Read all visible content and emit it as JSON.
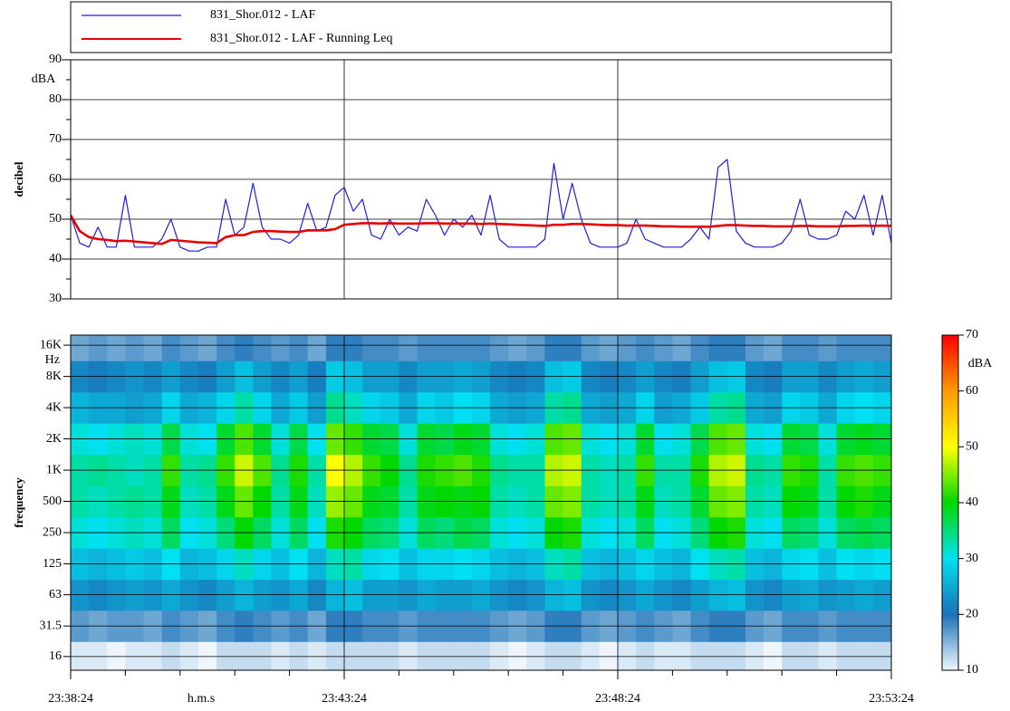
{
  "chart_data": [
    {
      "type": "line",
      "ylabel": "decibel",
      "yunit": "dBA",
      "xlim": [
        85104,
        86004
      ],
      "ylim": [
        30,
        90
      ],
      "yticks": [
        30,
        40,
        50,
        60,
        70,
        80,
        90
      ],
      "yminorticks": [
        35,
        45,
        55,
        65,
        75,
        85
      ],
      "grid": true,
      "legend": "top",
      "x": [
        85104,
        85114,
        85124,
        85134,
        85144,
        85154,
        85164,
        85174,
        85184,
        85194,
        85204,
        85214,
        85224,
        85234,
        85244,
        85254,
        85264,
        85274,
        85284,
        85294,
        85304,
        85314,
        85324,
        85334,
        85344,
        85354,
        85364,
        85374,
        85384,
        85394,
        85404,
        85414,
        85424,
        85434,
        85444,
        85454,
        85464,
        85474,
        85484,
        85494,
        85504,
        85514,
        85524,
        85534,
        85544,
        85554,
        85564,
        85574,
        85584,
        85594,
        85604,
        85614,
        85624,
        85634,
        85644,
        85654,
        85664,
        85674,
        85684,
        85694,
        85704,
        85714,
        85724,
        85734,
        85744,
        85754,
        85764,
        85774,
        85784,
        85794,
        85804,
        85814,
        85824,
        85834,
        85844,
        85854,
        85864,
        85874,
        85884,
        85894,
        85904,
        85914,
        85924,
        85934,
        85944,
        85954,
        85964,
        85974,
        85984,
        85994,
        86004
      ],
      "series": [
        {
          "name": "831_Shor.012 - LAF",
          "color": "#1f1fd6",
          "values": [
            51,
            44,
            43,
            48,
            43,
            43,
            56,
            43,
            43,
            43,
            45,
            50,
            43,
            42,
            42,
            43,
            43,
            55,
            46,
            48,
            59,
            48,
            45,
            45,
            44,
            46,
            54,
            47,
            48,
            56,
            58,
            52,
            55,
            46,
            45,
            50,
            46,
            48,
            47,
            55,
            51,
            46,
            50,
            48,
            51,
            46,
            56,
            45,
            43,
            43,
            43,
            43,
            45,
            64,
            50,
            59,
            50,
            44,
            43,
            43,
            43,
            44,
            50,
            45,
            44,
            43,
            43,
            43,
            45,
            48,
            45,
            63,
            65,
            47,
            44,
            43,
            43,
            43,
            44,
            47,
            55,
            46,
            45,
            45,
            46,
            52,
            50,
            56,
            46,
            56,
            44
          ]
        },
        {
          "name": "831_Shor.012 - LAF - Running Leq",
          "color": "#e60000",
          "values": [
            51,
            47,
            45.5,
            45,
            44.8,
            44.5,
            44.6,
            44.4,
            44.2,
            44,
            43.8,
            44.8,
            44.6,
            44.4,
            44.2,
            44.1,
            44,
            45.5,
            46,
            46,
            46.8,
            47,
            47,
            46.9,
            46.8,
            46.8,
            47.2,
            47.2,
            47.2,
            47.5,
            48.6,
            48.8,
            49,
            49,
            48.9,
            49,
            48.9,
            48.9,
            48.9,
            49,
            49,
            48.9,
            48.9,
            48.9,
            48.9,
            48.8,
            48.9,
            48.8,
            48.7,
            48.6,
            48.5,
            48.4,
            48.3,
            48.6,
            48.6,
            48.8,
            48.8,
            48.7,
            48.6,
            48.5,
            48.5,
            48.4,
            48.4,
            48.4,
            48.3,
            48.2,
            48.2,
            48.1,
            48.1,
            48.1,
            48.1,
            48.3,
            48.5,
            48.5,
            48.4,
            48.3,
            48.3,
            48.2,
            48.2,
            48.2,
            48.3,
            48.3,
            48.2,
            48.2,
            48.2,
            48.3,
            48.3,
            48.4,
            48.3,
            48.4,
            48.3
          ]
        }
      ]
    },
    {
      "type": "heatmap",
      "ylabel": "frequency",
      "yunit": "Hz",
      "xlabel": "h.m.s",
      "yscale": "log",
      "xlim": [
        85104,
        86004
      ],
      "xticks": [
        {
          "value": 85104,
          "label": "23:38:24"
        },
        {
          "value": 85404,
          "label": "23:43:24"
        },
        {
          "value": 85704,
          "label": "23:48:24"
        },
        {
          "value": 86004,
          "label": "23:53:24"
        }
      ],
      "xminorticks": [
        85164,
        85224,
        85284,
        85344,
        85464,
        85524,
        85584,
        85644,
        85764,
        85824,
        85884,
        85944
      ],
      "ylim": [
        11.8,
        20000
      ],
      "yticks": [
        {
          "value": 16000,
          "label": "16K"
        },
        {
          "value": 8000,
          "label": "8K"
        },
        {
          "value": 4000,
          "label": "4K"
        },
        {
          "value": 2000,
          "label": "2K"
        },
        {
          "value": 1000,
          "label": "1K"
        },
        500,
        250,
        125,
        63,
        31.5,
        16
      ],
      "grid": true,
      "zlim": [
        10,
        70
      ],
      "zticks": [
        10,
        20,
        30,
        40,
        50,
        60,
        70
      ],
      "zlabel": "dBA",
      "colorscale": [
        [
          10,
          "#eef6fc"
        ],
        [
          20,
          "#1a72b8"
        ],
        [
          30,
          "#00e0f0"
        ],
        [
          40,
          "#00d800"
        ],
        [
          50,
          "#ffff00"
        ],
        [
          60,
          "#ff9a00"
        ],
        [
          70,
          "#ff0000"
        ]
      ],
      "time_edges": [
        85104,
        85124,
        85144,
        85164,
        85184,
        85204,
        85224,
        85244,
        85264,
        85284,
        85304,
        85324,
        85344,
        85364,
        85384,
        85404,
        85424,
        85444,
        85464,
        85484,
        85504,
        85524,
        85544,
        85564,
        85584,
        85604,
        85624,
        85644,
        85664,
        85684,
        85704,
        85724,
        85744,
        85764,
        85784,
        85804,
        85824,
        85844,
        85864,
        85884,
        85904,
        85924,
        85944,
        85964,
        85984,
        86004
      ],
      "frequencies": [
        16,
        31.5,
        63,
        125,
        250,
        500,
        1000,
        2000,
        4000,
        8000,
        16000
      ],
      "values": [
        [
          11,
          11,
          10,
          11,
          11,
          12,
          11,
          10,
          12,
          12,
          12,
          11,
          12,
          11,
          12,
          12,
          12,
          12,
          11,
          12,
          12,
          12,
          12,
          11,
          10,
          11,
          12,
          12,
          11,
          10,
          11,
          12,
          11,
          11,
          12,
          12,
          12,
          11,
          10,
          12,
          12,
          11,
          12,
          12,
          12
        ],
        [
          17,
          16,
          17,
          17,
          16,
          18,
          17,
          16,
          18,
          19,
          18,
          17,
          18,
          16,
          19,
          19,
          18,
          18,
          17,
          18,
          18,
          18,
          18,
          17,
          16,
          17,
          19,
          19,
          17,
          16,
          17,
          18,
          17,
          16,
          18,
          19,
          19,
          17,
          16,
          18,
          18,
          17,
          18,
          18,
          18
        ],
        [
          23,
          22,
          23,
          24,
          23,
          25,
          23,
          22,
          24,
          26,
          24,
          23,
          25,
          22,
          26,
          27,
          24,
          24,
          23,
          25,
          24,
          24,
          25,
          23,
          22,
          23,
          26,
          27,
          23,
          22,
          23,
          25,
          23,
          22,
          24,
          26,
          27,
          23,
          22,
          24,
          25,
          23,
          24,
          25,
          24
        ],
        [
          27,
          26,
          27,
          28,
          27,
          30,
          26,
          27,
          29,
          32,
          29,
          27,
          30,
          26,
          32,
          33,
          29,
          30,
          27,
          29,
          29,
          30,
          29,
          27,
          26,
          27,
          32,
          33,
          27,
          26,
          27,
          29,
          27,
          26,
          30,
          32,
          33,
          27,
          26,
          29,
          30,
          27,
          30,
          29,
          30
        ],
        [
          31,
          30,
          31,
          32,
          31,
          36,
          30,
          31,
          35,
          40,
          36,
          31,
          36,
          30,
          41,
          40,
          36,
          35,
          31,
          36,
          35,
          37,
          36,
          31,
          30,
          31,
          40,
          41,
          31,
          30,
          31,
          36,
          30,
          31,
          35,
          40,
          41,
          31,
          30,
          36,
          35,
          31,
          36,
          37,
          36
        ],
        [
          33,
          32,
          33,
          34,
          33,
          39,
          32,
          33,
          39,
          44,
          40,
          33,
          39,
          32,
          46,
          44,
          39,
          38,
          33,
          39,
          40,
          39,
          40,
          33,
          32,
          33,
          44,
          45,
          33,
          32,
          33,
          39,
          32,
          33,
          38,
          44,
          45,
          33,
          32,
          40,
          39,
          33,
          40,
          41,
          39
        ],
        [
          33,
          34,
          33,
          32,
          33,
          42,
          33,
          34,
          42,
          48,
          43,
          34,
          41,
          33,
          50,
          47,
          42,
          40,
          34,
          41,
          42,
          43,
          41,
          34,
          33,
          33,
          47,
          48,
          33,
          32,
          33,
          42,
          33,
          33,
          41,
          47,
          48,
          34,
          33,
          42,
          41,
          33,
          42,
          43,
          42
        ],
        [
          31,
          30,
          31,
          32,
          31,
          37,
          31,
          30,
          38,
          43,
          38,
          31,
          37,
          30,
          44,
          42,
          38,
          37,
          31,
          38,
          37,
          39,
          38,
          31,
          30,
          31,
          43,
          44,
          31,
          30,
          31,
          38,
          30,
          31,
          37,
          43,
          44,
          31,
          30,
          38,
          37,
          31,
          38,
          39,
          38
        ],
        [
          26,
          25,
          25,
          24,
          25,
          29,
          25,
          26,
          29,
          33,
          29,
          25,
          28,
          24,
          34,
          32,
          29,
          28,
          25,
          29,
          28,
          30,
          29,
          25,
          24,
          25,
          33,
          34,
          25,
          24,
          25,
          29,
          24,
          25,
          28,
          33,
          34,
          25,
          24,
          29,
          28,
          25,
          29,
          30,
          29
        ],
        [
          22,
          21,
          22,
          23,
          22,
          24,
          22,
          21,
          24,
          27,
          24,
          22,
          24,
          21,
          28,
          27,
          24,
          24,
          22,
          24,
          24,
          25,
          24,
          22,
          21,
          22,
          27,
          28,
          22,
          21,
          22,
          24,
          22,
          21,
          24,
          27,
          28,
          22,
          21,
          24,
          24,
          22,
          24,
          25,
          24
        ],
        [
          16,
          17,
          16,
          17,
          16,
          18,
          17,
          16,
          18,
          19,
          18,
          17,
          18,
          16,
          19,
          19,
          18,
          18,
          17,
          18,
          18,
          18,
          18,
          17,
          16,
          17,
          19,
          19,
          17,
          16,
          17,
          18,
          17,
          16,
          18,
          19,
          19,
          17,
          16,
          18,
          18,
          17,
          18,
          18,
          18
        ]
      ]
    }
  ]
}
